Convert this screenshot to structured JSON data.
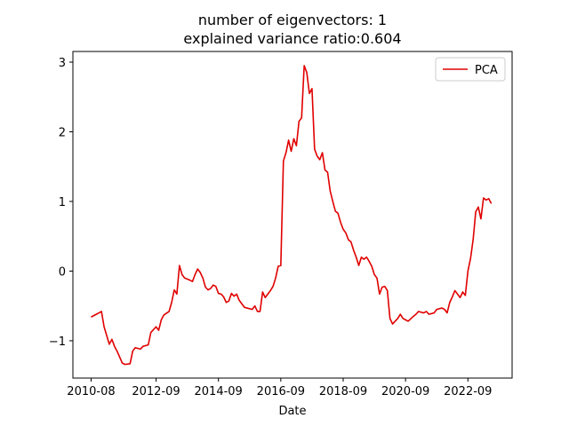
{
  "chart_data": {
    "type": "line",
    "title": [
      "number of eigenvectors: 1",
      "explained variance ratio:0.604"
    ],
    "xlabel": "Date",
    "legend": "upper right",
    "xlim": [
      "2010-01",
      "2024-02"
    ],
    "xticks": [
      "2010-08",
      "2012-09",
      "2014-09",
      "2016-09",
      "2018-09",
      "2020-09",
      "2022-09"
    ],
    "ylim": [
      -1.536,
      3.153
    ],
    "yticks": [
      {
        "value": -1,
        "label": "−1"
      },
      0,
      1,
      2,
      3
    ],
    "x": [
      "2010-08",
      "2010-10",
      "2010-11",
      "2010-12",
      "2011-01",
      "2011-03",
      "2011-04",
      "2011-05",
      "2011-06",
      "2011-08",
      "2011-09",
      "2011-11",
      "2011-12",
      "2012-01",
      "2012-03",
      "2012-04",
      "2012-06",
      "2012-07",
      "2012-09",
      "2012-10",
      "2012-11",
      "2012-12",
      "2013-02",
      "2013-03",
      "2013-04",
      "2013-05",
      "2013-06",
      "2013-07",
      "2013-08",
      "2013-10",
      "2013-11",
      "2013-12",
      "2014-01",
      "2014-02",
      "2014-03",
      "2014-04",
      "2014-05",
      "2014-06",
      "2014-07",
      "2014-08",
      "2014-09",
      "2014-10",
      "2014-11",
      "2014-12",
      "2015-01",
      "2015-02",
      "2015-03",
      "2015-04",
      "2015-05",
      "2015-07",
      "2015-08",
      "2015-10",
      "2015-11",
      "2015-12",
      "2016-01",
      "2016-02",
      "2016-03",
      "2016-04",
      "2016-05",
      "2016-06",
      "2016-07",
      "2016-08",
      "2016-09",
      "2016-10",
      "2016-11",
      "2016-12",
      "2017-01",
      "2017-02",
      "2017-03",
      "2017-04",
      "2017-05",
      "2017-06",
      "2017-07",
      "2017-08",
      "2017-09",
      "2017-10",
      "2017-11",
      "2017-12",
      "2018-01",
      "2018-02",
      "2018-03",
      "2018-04",
      "2018-05",
      "2018-06",
      "2018-07",
      "2018-08",
      "2018-09",
      "2018-10",
      "2018-11",
      "2018-12",
      "2019-01",
      "2019-02",
      "2019-03",
      "2019-04",
      "2019-05",
      "2019-06",
      "2019-07",
      "2019-08",
      "2019-09",
      "2019-10",
      "2019-11",
      "2019-12",
      "2020-01",
      "2020-02",
      "2020-03",
      "2020-04",
      "2020-05",
      "2020-06",
      "2020-07",
      "2020-08",
      "2020-09",
      "2020-10",
      "2020-12",
      "2021-01",
      "2021-02",
      "2021-04",
      "2021-05",
      "2021-06",
      "2021-08",
      "2021-09",
      "2021-11",
      "2021-12",
      "2022-01",
      "2022-02",
      "2022-03",
      "2022-04",
      "2022-06",
      "2022-07",
      "2022-08",
      "2022-09",
      "2022-10",
      "2022-11",
      "2022-12",
      "2023-01",
      "2023-02",
      "2023-03",
      "2023-04",
      "2023-05",
      "2023-06"
    ],
    "series": [
      {
        "name": "PCA",
        "color": "#e00000",
        "values": [
          -0.66,
          -0.62,
          -0.6,
          -0.58,
          -0.8,
          -1.05,
          -0.98,
          -1.08,
          -1.15,
          -1.32,
          -1.34,
          -1.33,
          -1.15,
          -1.1,
          -1.12,
          -1.08,
          -1.06,
          -0.88,
          -0.8,
          -0.85,
          -0.7,
          -0.63,
          -0.58,
          -0.45,
          -0.27,
          -0.33,
          0.08,
          -0.05,
          -0.1,
          -0.13,
          -0.15,
          -0.05,
          0.03,
          -0.02,
          -0.1,
          -0.23,
          -0.27,
          -0.25,
          -0.2,
          -0.22,
          -0.32,
          -0.33,
          -0.37,
          -0.45,
          -0.43,
          -0.32,
          -0.36,
          -0.33,
          -0.42,
          -0.52,
          -0.53,
          -0.55,
          -0.5,
          -0.58,
          -0.58,
          -0.3,
          -0.38,
          -0.33,
          -0.28,
          -0.22,
          -0.1,
          0.07,
          0.08,
          1.58,
          1.7,
          1.88,
          1.72,
          1.9,
          1.8,
          2.15,
          2.2,
          2.95,
          2.85,
          2.55,
          2.62,
          1.75,
          1.65,
          1.6,
          1.7,
          1.45,
          1.42,
          1.15,
          1.0,
          0.86,
          0.83,
          0.7,
          0.6,
          0.55,
          0.45,
          0.42,
          0.3,
          0.2,
          0.08,
          0.2,
          0.17,
          0.2,
          0.14,
          0.07,
          -0.05,
          -0.1,
          -0.33,
          -0.23,
          -0.22,
          -0.28,
          -0.68,
          -0.76,
          -0.72,
          -0.68,
          -0.62,
          -0.68,
          -0.7,
          -0.72,
          -0.65,
          -0.62,
          -0.58,
          -0.6,
          -0.58,
          -0.62,
          -0.6,
          -0.55,
          -0.53,
          -0.55,
          -0.6,
          -0.45,
          -0.37,
          -0.28,
          -0.38,
          -0.3,
          -0.35,
          0.0,
          0.18,
          0.45,
          0.85,
          0.92,
          0.75,
          1.05,
          1.02,
          1.04,
          0.97
        ]
      }
    ]
  }
}
